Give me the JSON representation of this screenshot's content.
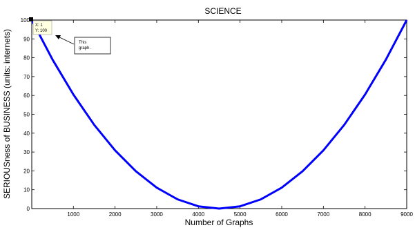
{
  "chart_data": {
    "type": "line",
    "title": "SCIENCE",
    "xlabel": "Number of Graphs",
    "ylabel": "SERIOUSness of BUSINESS (units: internets)",
    "xlim": [
      1,
      9000
    ],
    "ylim": [
      0,
      100
    ],
    "xticks": [
      1000,
      2000,
      3000,
      4000,
      5000,
      6000,
      7000,
      8000,
      9000
    ],
    "yticks": [
      0,
      10,
      20,
      30,
      40,
      50,
      60,
      70,
      80,
      90,
      100
    ],
    "grid": false,
    "series": [
      {
        "color": "#0000ff",
        "x": [
          1,
          500,
          1000,
          1500,
          2000,
          2500,
          3000,
          3500,
          4000,
          4500,
          5000,
          5500,
          6000,
          6500,
          7000,
          7500,
          8000,
          8500,
          9000
        ],
        "y": [
          100,
          79.0,
          60.5,
          44.4,
          30.9,
          19.8,
          11.1,
          4.9,
          1.2,
          0,
          1.2,
          4.9,
          11.1,
          19.8,
          30.9,
          44.4,
          60.5,
          79.0,
          100
        ]
      }
    ],
    "datatip": {
      "x_text": "X: 1",
      "y_text": "Y: 100"
    },
    "annotation": {
      "text_line1": "This",
      "text_line2": "graph."
    }
  }
}
